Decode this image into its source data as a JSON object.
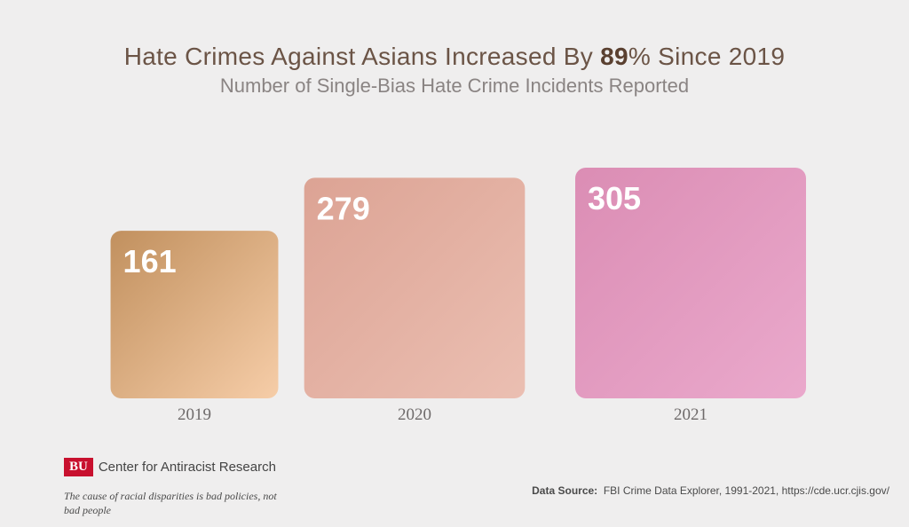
{
  "chart_data": {
    "type": "bar",
    "title_prefix": "Hate Crimes Against Asians Increased By ",
    "title_emphasis": "89",
    "title_suffix": "% Since 2019",
    "subtitle": "Number of Single-Bias Hate Crime Incidents Reported",
    "categories": [
      "2019",
      "2020",
      "2021"
    ],
    "values": [
      161,
      279,
      305
    ],
    "bar_colors": [
      [
        "#c1905e",
        "#f6cda8"
      ],
      [
        "#dca394",
        "#ebbfb2"
      ],
      [
        "#db8db4",
        "#eaa9cc"
      ]
    ]
  },
  "footer": {
    "logo_text": "BU",
    "org_name": "Center for Antiracist Research",
    "tagline": "The cause of racial disparities is bad policies, not bad people",
    "source_label": "Data Source:",
    "source_text": "FBI Crime Data Explorer, 1991-2021, https://cde.ucr.cjis.gov/"
  }
}
